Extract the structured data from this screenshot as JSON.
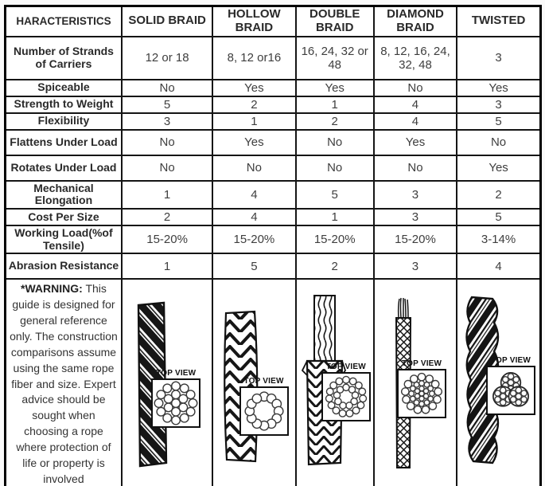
{
  "table": {
    "header": [
      "HARACTERISTICS",
      "SOLID BRAID",
      "HOLLOW BRAID",
      "DOUBLE BRAID",
      "DIAMOND BRAID",
      "TWISTED"
    ],
    "rows": [
      {
        "label": "Number of Strands of Carriers",
        "values": [
          "12 or 18",
          "8, 12 or16",
          "16, 24, 32 or 48",
          "8, 12, 16, 24, 32, 48",
          "3"
        ]
      },
      {
        "label": "Spiceable",
        "values": [
          "No",
          "Yes",
          "Yes",
          "No",
          "Yes"
        ]
      },
      {
        "label": "Strength to Weight",
        "values": [
          "5",
          "2",
          "1",
          "4",
          "3"
        ]
      },
      {
        "label": "Flexibility",
        "values": [
          "3",
          "1",
          "2",
          "4",
          "5"
        ]
      },
      {
        "label": "Flattens Under Load",
        "values": [
          "No",
          "Yes",
          "No",
          "Yes",
          "No"
        ]
      },
      {
        "label": "Rotates Under Load",
        "values": [
          "No",
          "No",
          "No",
          "No",
          "Yes"
        ]
      },
      {
        "label": "Mechanical Elongation",
        "values": [
          "1",
          "4",
          "5",
          "3",
          "2"
        ]
      },
      {
        "label": "Cost Per Size",
        "values": [
          "2",
          "4",
          "1",
          "3",
          "5"
        ]
      },
      {
        "label": "Working Load(%of Tensile)",
        "values": [
          "15-20%",
          "15-20%",
          "15-20%",
          "15-20%",
          "3-14%"
        ]
      },
      {
        "label": "Abrasion Resistance",
        "values": [
          "1",
          "5",
          "2",
          "3",
          "4"
        ]
      }
    ],
    "warning": {
      "prefix": "*WARNING:",
      "body": "This guide is designed for general reference only. The construction comparisons assume using the same rope fiber and size. Expert advice should be sought when choosing a rope where protection of life or property is involved"
    },
    "top_view_label": "TOP VIEW",
    "icons": [
      "solid-braid-rope-icon",
      "hollow-braid-rope-icon",
      "double-braid-rope-icon",
      "diamond-braid-rope-icon",
      "twisted-rope-icon"
    ]
  }
}
